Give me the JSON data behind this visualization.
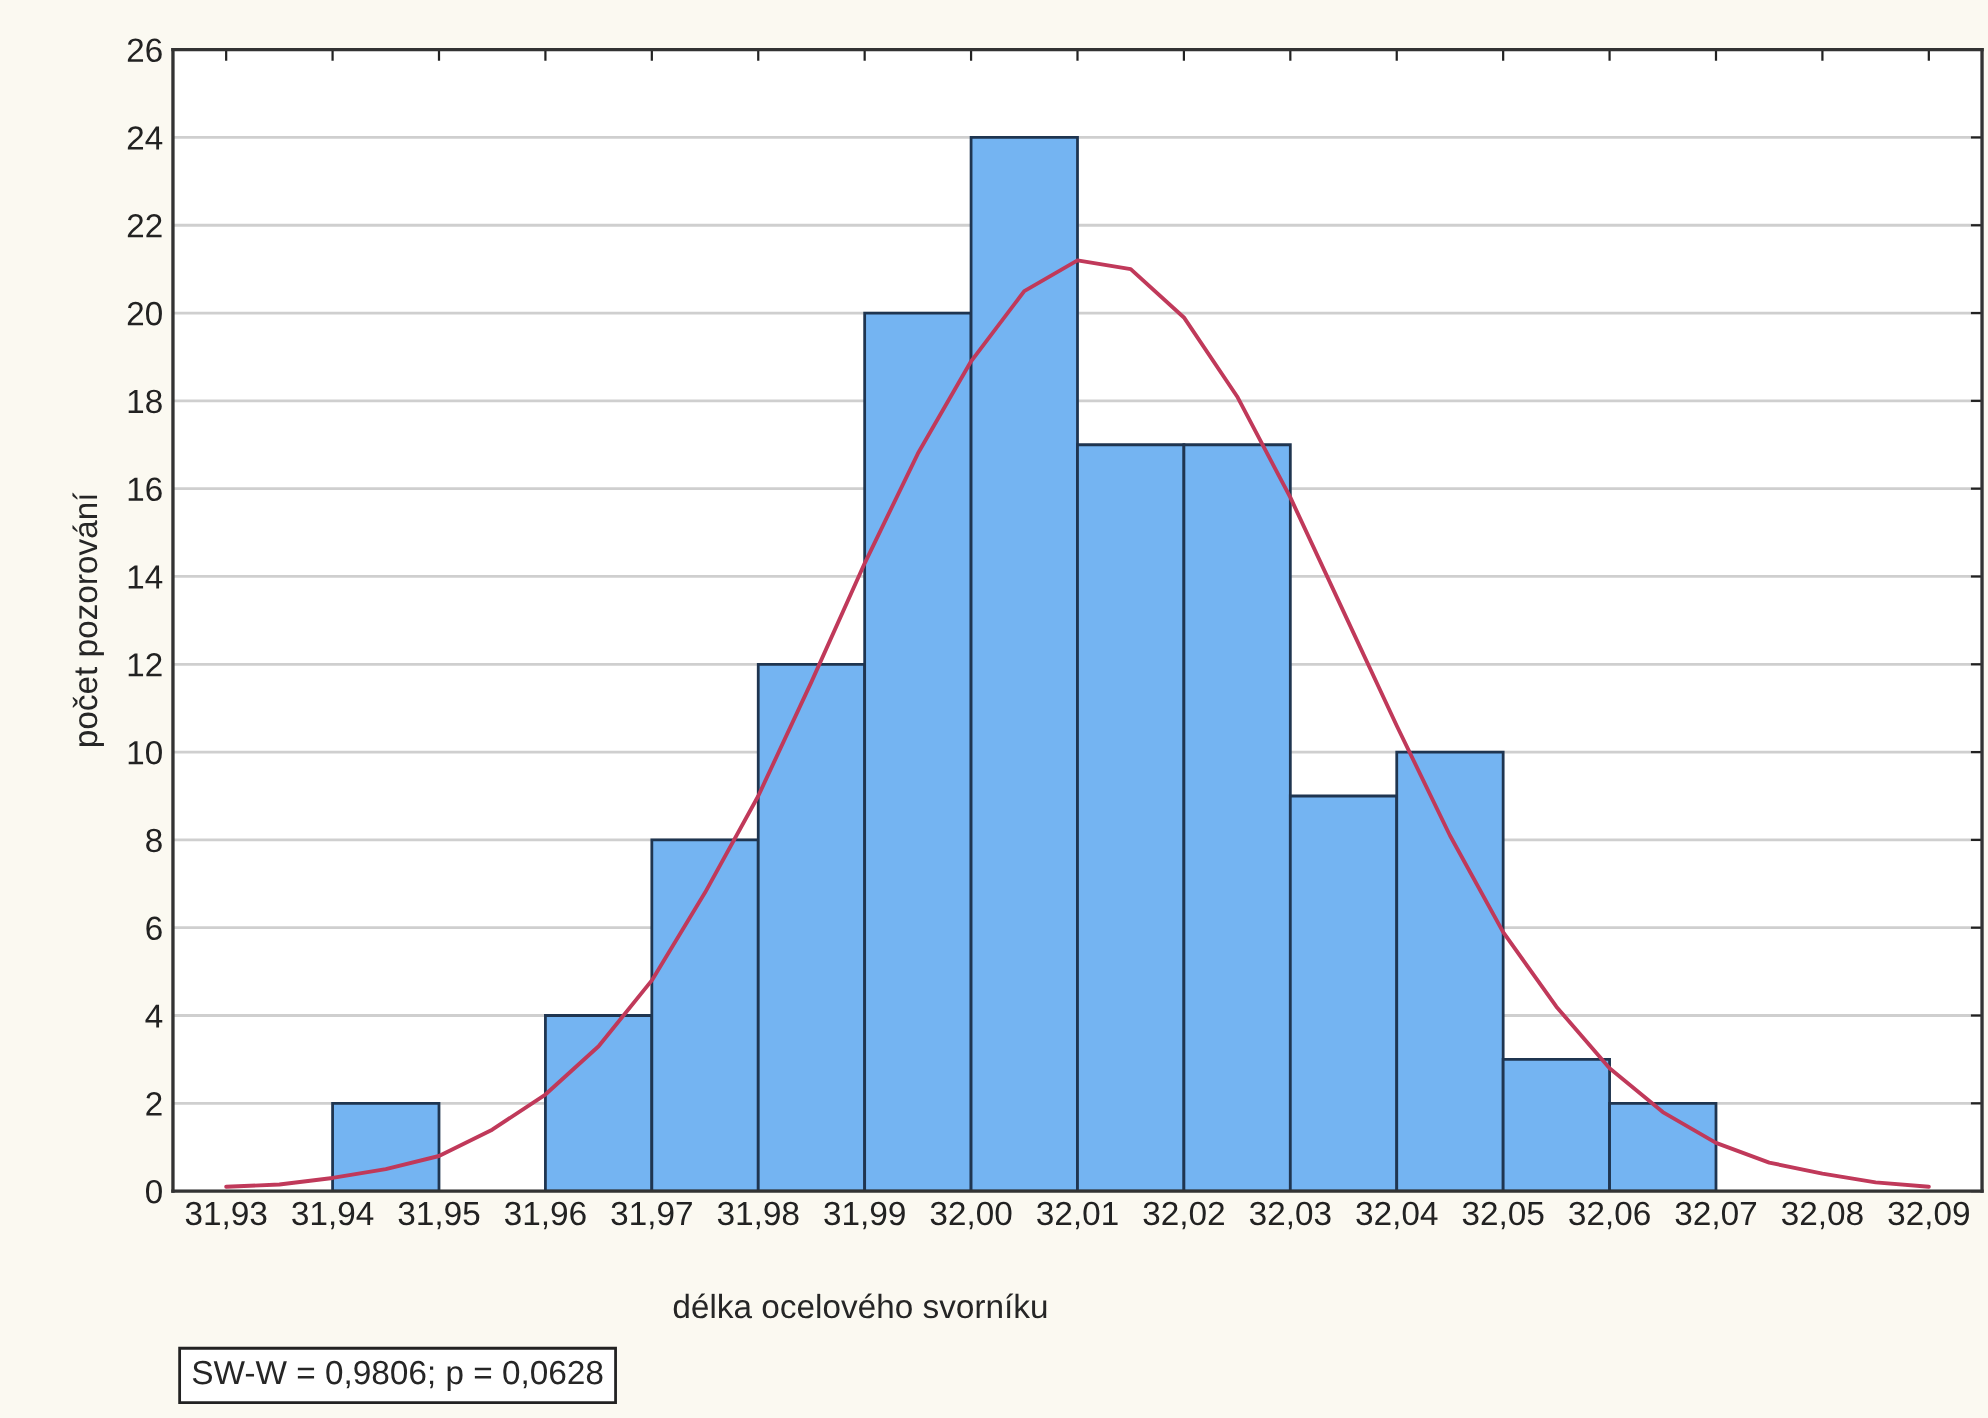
{
  "chart_data": {
    "type": "histogram",
    "xlabel": "délka ocelového svorníku",
    "ylabel": "počet pozorování",
    "bins": [
      31.93,
      31.94,
      31.95,
      31.96,
      31.97,
      31.98,
      31.99,
      32.0,
      32.01,
      32.02,
      32.03,
      32.04,
      32.05,
      32.06,
      32.07,
      32.08,
      32.09
    ],
    "values": [
      0,
      2,
      0,
      4,
      8,
      12,
      20,
      24,
      17,
      17,
      9,
      10,
      3,
      2,
      0,
      0
    ],
    "color": "#74b4f2",
    "series": [
      {
        "type": "line",
        "color": "#c0395a",
        "x": [
          31.93,
          31.935,
          31.94,
          31.945,
          31.95,
          31.955,
          31.96,
          31.965,
          31.97,
          31.975,
          31.98,
          31.985,
          31.99,
          31.995,
          32.0,
          32.005,
          32.01,
          32.015,
          32.02,
          32.025,
          32.03,
          32.035,
          32.04,
          32.045,
          32.05,
          32.055,
          32.06,
          32.065,
          32.07,
          32.075,
          32.08,
          32.085,
          32.09
        ],
        "values": [
          0.1,
          0.15,
          0.3,
          0.5,
          0.8,
          1.4,
          2.2,
          3.3,
          4.8,
          6.8,
          9.0,
          11.6,
          14.3,
          16.8,
          18.9,
          20.5,
          21.2,
          21.0,
          19.9,
          18.1,
          15.8,
          13.2,
          10.6,
          8.1,
          5.9,
          4.2,
          2.8,
          1.8,
          1.1,
          0.65,
          0.4,
          0.2,
          0.1
        ]
      }
    ],
    "xlim": [
      31.925,
      32.095
    ],
    "ylim": [
      0,
      26
    ],
    "xticks": [
      {
        "value": 31.93,
        "label": "31,93"
      },
      {
        "value": 31.94,
        "label": "31,94"
      },
      {
        "value": 31.95,
        "label": "31,95"
      },
      {
        "value": 31.96,
        "label": "31,96"
      },
      {
        "value": 31.97,
        "label": "31,97"
      },
      {
        "value": 31.98,
        "label": "31,98"
      },
      {
        "value": 31.99,
        "label": "31,99"
      },
      {
        "value": 32.0,
        "label": "32,00"
      },
      {
        "value": 32.01,
        "label": "32,01"
      },
      {
        "value": 32.02,
        "label": "32,02"
      },
      {
        "value": 32.03,
        "label": "32,03"
      },
      {
        "value": 32.04,
        "label": "32,04"
      },
      {
        "value": 32.05,
        "label": "32,05"
      },
      {
        "value": 32.06,
        "label": "32,06"
      },
      {
        "value": 32.07,
        "label": "32,07"
      },
      {
        "value": 32.08,
        "label": "32,08"
      },
      {
        "value": 32.09,
        "label": "32,09"
      }
    ],
    "yticks": [
      0,
      2,
      4,
      6,
      8,
      10,
      12,
      14,
      16,
      18,
      20,
      22,
      24,
      26
    ],
    "grid": "y",
    "annotations": [
      "SW-W = 0,9806; p = 0,0628"
    ]
  }
}
